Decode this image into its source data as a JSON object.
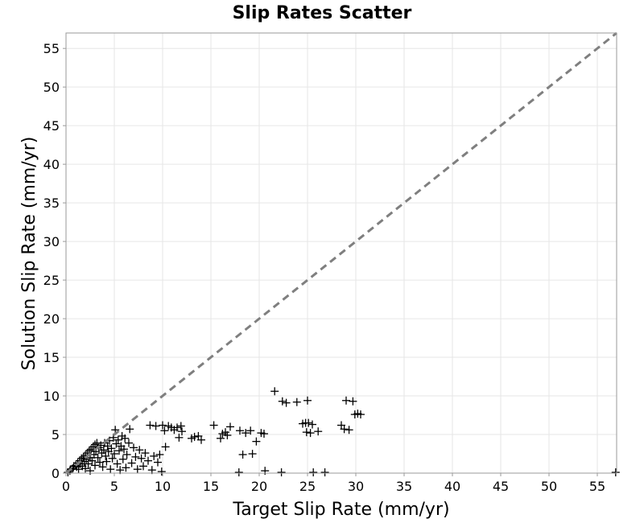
{
  "chart_data": {
    "type": "scatter",
    "title": "Slip Rates Scatter",
    "xlabel": "Target Slip Rate (mm/yr)",
    "ylabel": "Solution Slip Rate (mm/yr)",
    "xlim": [
      0,
      57
    ],
    "ylim": [
      0,
      57
    ],
    "xticks": [
      "0",
      "5",
      "10",
      "15",
      "20",
      "25",
      "30",
      "35",
      "40",
      "45",
      "50",
      "55"
    ],
    "yticks": [
      "0",
      "5",
      "10",
      "15",
      "20",
      "25",
      "30",
      "35",
      "40",
      "45",
      "50",
      "55"
    ],
    "grid": true,
    "legend": "none",
    "marker": "plus",
    "marker_color": "#000000",
    "reference_line": {
      "style": "dashed",
      "color": "#7f7f7f",
      "from": [
        0,
        0
      ],
      "to": [
        57,
        57
      ]
    },
    "points": [
      [
        0.2,
        0.1
      ],
      [
        0.4,
        0.3
      ],
      [
        0.5,
        0.5
      ],
      [
        0.7,
        0.6
      ],
      [
        0.8,
        0.9
      ],
      [
        1.0,
        1.0
      ],
      [
        1.1,
        0.8
      ],
      [
        1.2,
        1.3
      ],
      [
        1.3,
        0.5
      ],
      [
        1.4,
        1.6
      ],
      [
        1.5,
        1.2
      ],
      [
        1.6,
        1.9
      ],
      [
        1.7,
        0.9
      ],
      [
        1.8,
        2.1
      ],
      [
        1.9,
        1.5
      ],
      [
        2.0,
        2.3
      ],
      [
        2.0,
        0.6
      ],
      [
        2.1,
        1.8
      ],
      [
        2.2,
        2.6
      ],
      [
        2.3,
        1.2
      ],
      [
        2.4,
        2.9
      ],
      [
        2.5,
        2.0
      ],
      [
        2.5,
        0.3
      ],
      [
        2.6,
        3.1
      ],
      [
        2.7,
        1.6
      ],
      [
        2.8,
        3.4
      ],
      [
        2.9,
        2.4
      ],
      [
        3.0,
        3.7
      ],
      [
        3.0,
        1.0
      ],
      [
        3.1,
        2.8
      ],
      [
        3.2,
        3.9
      ],
      [
        3.3,
        2.0
      ],
      [
        3.4,
        3.3
      ],
      [
        3.5,
        1.4
      ],
      [
        3.6,
        3.6
      ],
      [
        3.7,
        2.6
      ],
      [
        3.8,
        0.8
      ],
      [
        3.9,
        3.0
      ],
      [
        4.0,
        3.9
      ],
      [
        4.1,
        2.2
      ],
      [
        4.2,
        1.5
      ],
      [
        4.3,
        3.5
      ],
      [
        4.4,
        2.8
      ],
      [
        4.5,
        4.2
      ],
      [
        4.6,
        0.5
      ],
      [
        4.7,
        3.2
      ],
      [
        4.8,
        1.9
      ],
      [
        4.9,
        4.6
      ],
      [
        5.0,
        2.5
      ],
      [
        5.1,
        5.6
      ],
      [
        5.2,
        3.8
      ],
      [
        5.3,
        1.2
      ],
      [
        5.4,
        4.3
      ],
      [
        5.5,
        2.9
      ],
      [
        5.6,
        0.4
      ],
      [
        5.7,
        3.5
      ],
      [
        5.8,
        4.8
      ],
      [
        5.9,
        1.8
      ],
      [
        6.0,
        3.1
      ],
      [
        6.1,
        4.5
      ],
      [
        6.2,
        0.7
      ],
      [
        6.3,
        2.4
      ],
      [
        6.5,
        3.9
      ],
      [
        6.6,
        5.7
      ],
      [
        6.8,
        1.3
      ],
      [
        7.0,
        3.3
      ],
      [
        7.2,
        2.1
      ],
      [
        7.4,
        0.5
      ],
      [
        7.6,
        3.0
      ],
      [
        7.8,
        1.9
      ],
      [
        8.0,
        0.9
      ],
      [
        8.2,
        2.6
      ],
      [
        8.5,
        1.6
      ],
      [
        8.7,
        6.2
      ],
      [
        8.9,
        0.4
      ],
      [
        9.1,
        2.2
      ],
      [
        9.3,
        6.1
      ],
      [
        9.5,
        1.4
      ],
      [
        9.7,
        2.4
      ],
      [
        9.9,
        0.2
      ],
      [
        10.0,
        6.2
      ],
      [
        10.2,
        5.5
      ],
      [
        10.3,
        3.4
      ],
      [
        10.6,
        6.1
      ],
      [
        10.9,
        5.9
      ],
      [
        11.2,
        5.6
      ],
      [
        11.5,
        5.9
      ],
      [
        11.7,
        4.6
      ],
      [
        11.9,
        6.1
      ],
      [
        12.0,
        5.4
      ],
      [
        13.0,
        4.5
      ],
      [
        13.3,
        4.7
      ],
      [
        13.7,
        4.8
      ],
      [
        14.0,
        4.3
      ],
      [
        15.3,
        6.2
      ],
      [
        16.0,
        4.5
      ],
      [
        16.2,
        5.1
      ],
      [
        16.5,
        5.3
      ],
      [
        16.7,
        4.9
      ],
      [
        17.0,
        6.0
      ],
      [
        18.0,
        5.5
      ],
      [
        18.3,
        2.4
      ],
      [
        18.6,
        5.2
      ],
      [
        19.1,
        5.5
      ],
      [
        19.3,
        2.5
      ],
      [
        19.7,
        4.1
      ],
      [
        20.2,
        5.2
      ],
      [
        20.5,
        5.1
      ],
      [
        21.6,
        10.6
      ],
      [
        22.4,
        9.3
      ],
      [
        22.8,
        9.1
      ],
      [
        23.9,
        9.2
      ],
      [
        24.5,
        6.4
      ],
      [
        24.8,
        6.5
      ],
      [
        24.9,
        5.3
      ],
      [
        25.0,
        9.4
      ],
      [
        25.1,
        6.5
      ],
      [
        25.3,
        5.2
      ],
      [
        25.5,
        6.3
      ],
      [
        26.1,
        5.4
      ],
      [
        28.5,
        6.2
      ],
      [
        28.8,
        5.7
      ],
      [
        29.0,
        9.4
      ],
      [
        29.3,
        5.6
      ],
      [
        29.7,
        9.3
      ],
      [
        29.9,
        7.6
      ],
      [
        30.2,
        7.7
      ],
      [
        30.5,
        7.6
      ],
      [
        17.9,
        0.1
      ],
      [
        20.6,
        0.3
      ],
      [
        22.3,
        0.1
      ],
      [
        25.6,
        0.1
      ],
      [
        26.8,
        0.1
      ],
      [
        56.9,
        0.1
      ]
    ]
  }
}
